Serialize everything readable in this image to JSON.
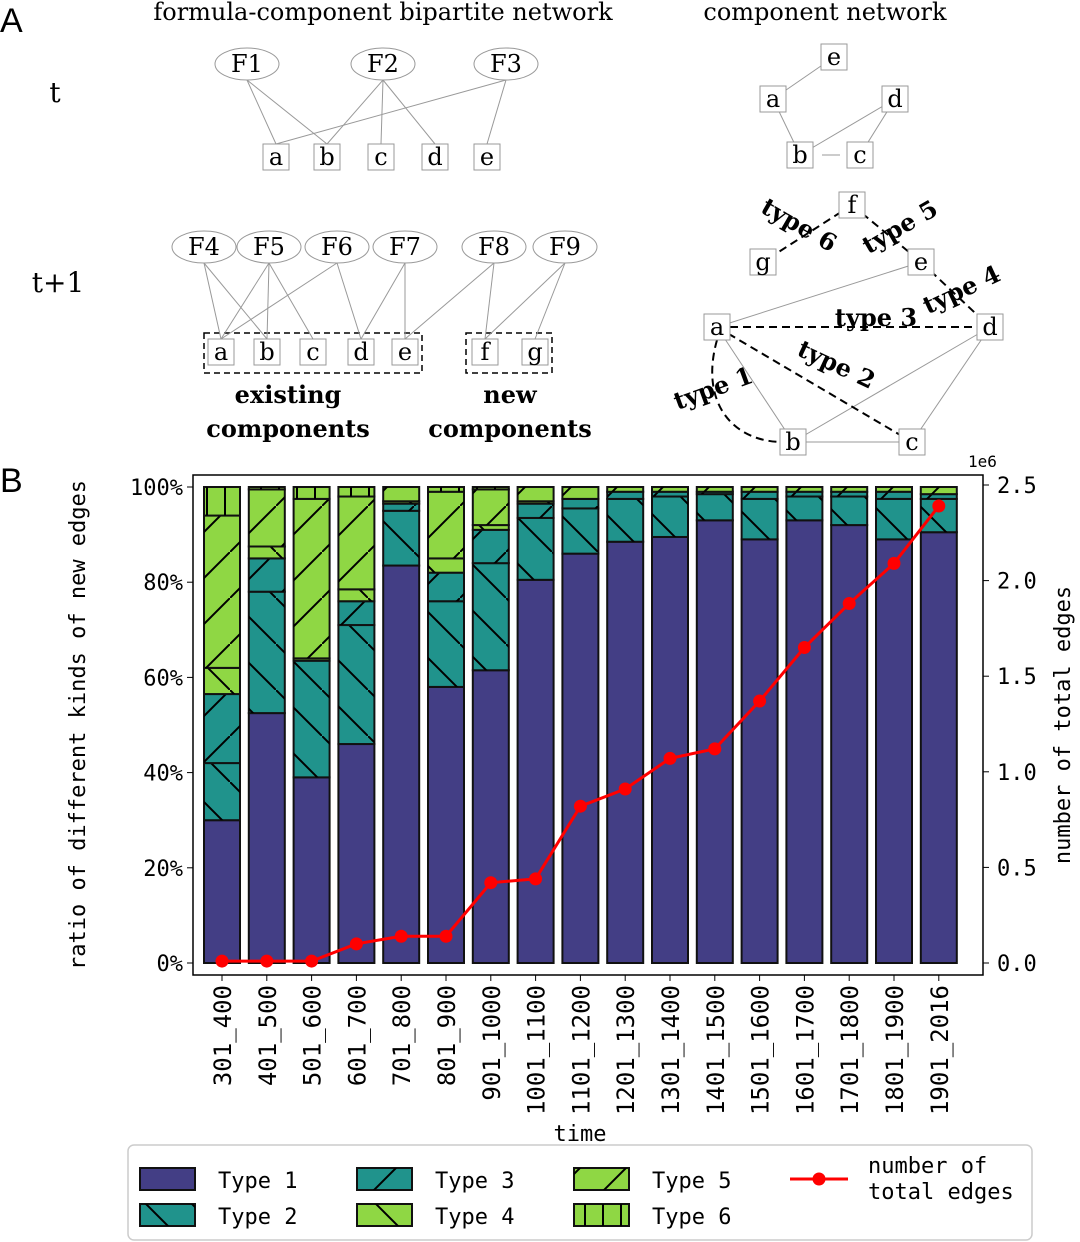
{
  "panel_a": {
    "label": "A",
    "title_left": "formula-component bipartite network",
    "title_right": "component network",
    "row_t": "t",
    "row_t1": "t+1",
    "t_formulas": [
      "F1",
      "F2",
      "F3"
    ],
    "t_components": [
      "a",
      "b",
      "c",
      "d",
      "e"
    ],
    "t1_formulas": [
      "F4",
      "F5",
      "F6",
      "F7",
      "F8",
      "F9"
    ],
    "t1_components": [
      "a",
      "b",
      "c",
      "d",
      "e",
      "f",
      "g"
    ],
    "existing_label": [
      "existing",
      "components"
    ],
    "new_label": [
      "new",
      "components"
    ],
    "comp_t_nodes": [
      "e",
      "a",
      "d",
      "b",
      "c"
    ],
    "comp_t1_nodes": [
      "f",
      "g",
      "e",
      "a",
      "d",
      "b",
      "c"
    ],
    "type_labels": [
      "type 1",
      "type 2",
      "type 3",
      "type 4",
      "type 5",
      "type 6"
    ]
  },
  "panel_b": {
    "label": "B"
  },
  "colors": {
    "type1": "#433e85",
    "type23": "#20938c",
    "type456": "#8fd744",
    "line": "#ff0000"
  },
  "chart_data": {
    "type": "bar",
    "stacked": true,
    "xlabel": "time",
    "ylabel": "ratio of different kinds of new edges",
    "y2label": "number of total edges",
    "y2_offset_label": "1e6",
    "ylim": [
      0,
      100
    ],
    "y2lim": [
      0,
      2.5
    ],
    "yticks": [
      "0%",
      "20%",
      "40%",
      "60%",
      "80%",
      "100%"
    ],
    "y2ticks": [
      "0.0",
      "0.5",
      "1.0",
      "1.5",
      "2.0",
      "2.5"
    ],
    "categories": [
      "301_400",
      "401_500",
      "501_600",
      "601_700",
      "701_800",
      "801_900",
      "901_1000",
      "1001_1100",
      "1101_1200",
      "1201_1300",
      "1301_1400",
      "1401_1500",
      "1501_1600",
      "1601_1700",
      "1701_1800",
      "1801_1900",
      "1901_2016"
    ],
    "series": [
      {
        "name": "Type 1",
        "values": [
          30,
          52.5,
          39,
          46,
          83.5,
          58,
          61.5,
          80.5,
          86,
          88.5,
          89.5,
          93,
          89,
          93,
          92,
          89,
          90.5
        ]
      },
      {
        "name": "Type 2",
        "values": [
          12,
          25.5,
          24.5,
          25,
          11.5,
          18,
          22.5,
          13,
          9.5,
          9,
          8.5,
          5.5,
          8.5,
          5,
          6,
          8.5,
          7
        ]
      },
      {
        "name": "Type 3",
        "values": [
          14.5,
          7,
          0,
          5,
          1.5,
          6,
          7,
          3,
          2,
          1.5,
          1,
          0.5,
          1.5,
          1,
          1,
          1.5,
          1
        ]
      },
      {
        "name": "Type 4",
        "values": [
          5.5,
          2.5,
          0.5,
          2.5,
          0.5,
          3,
          1,
          0.5,
          0,
          0,
          0,
          0,
          0,
          0,
          0,
          0,
          0
        ]
      },
      {
        "name": "Type 5",
        "values": [
          32,
          12,
          33.5,
          19.5,
          3,
          14,
          7.5,
          3,
          2.5,
          1,
          1,
          1,
          1,
          1,
          1,
          1,
          1.5
        ]
      },
      {
        "name": "Type 6",
        "values": [
          6,
          0.5,
          2.5,
          2,
          0,
          1,
          0.5,
          0,
          0,
          0,
          0,
          0,
          0,
          0,
          0,
          0,
          0
        ]
      }
    ],
    "line": {
      "name": "number of total edges",
      "values": [
        0.01,
        0.01,
        0.01,
        0.1,
        0.14,
        0.14,
        0.42,
        0.44,
        0.82,
        0.91,
        1.07,
        1.12,
        1.37,
        1.65,
        1.88,
        2.09,
        2.39
      ]
    },
    "legend": {
      "placement": "bottom",
      "entries": [
        "Type 1",
        "Type 2",
        "Type 3",
        "Type 4",
        "Type 5",
        "Type 6"
      ],
      "line_entry": [
        "number of",
        "total edges"
      ]
    }
  }
}
